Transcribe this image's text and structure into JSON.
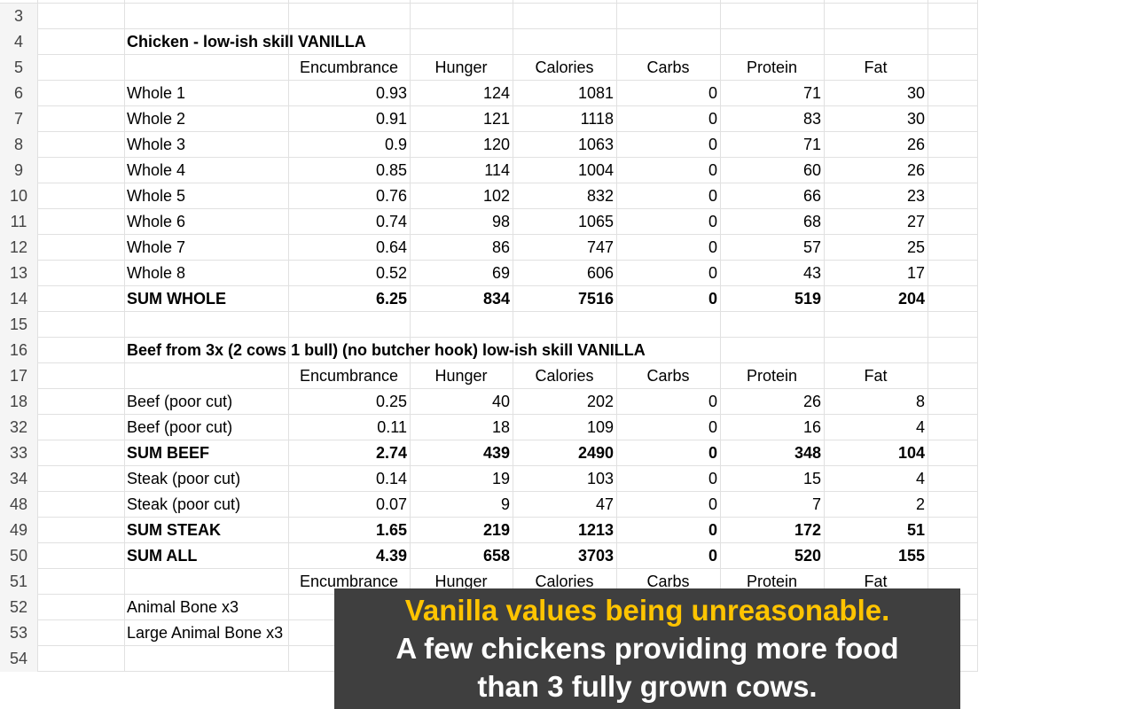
{
  "sheet": {
    "rows": [
      {
        "number": 3,
        "cells": [
          null,
          null,
          null,
          null,
          null,
          null,
          null
        ]
      },
      {
        "number": 4,
        "bold": true,
        "cells": [
          "Chicken - low-ish skill VANILLA",
          null,
          null,
          null,
          null,
          null,
          null
        ]
      },
      {
        "number": 5,
        "cells": [
          null,
          "Encumbrance",
          "Hunger",
          "Calories",
          "Carbs",
          "Protein",
          "Fat"
        ]
      },
      {
        "number": 6,
        "cells": [
          "Whole 1",
          0.93,
          124,
          1081,
          0,
          71,
          30
        ]
      },
      {
        "number": 7,
        "cells": [
          "Whole 2",
          0.91,
          121,
          1118,
          0,
          83,
          30
        ]
      },
      {
        "number": 8,
        "cells": [
          "Whole 3",
          0.9,
          120,
          1063,
          0,
          71,
          26
        ]
      },
      {
        "number": 9,
        "cells": [
          "Whole 4",
          0.85,
          114,
          1004,
          0,
          60,
          26
        ]
      },
      {
        "number": 10,
        "cells": [
          "Whole 5",
          0.76,
          102,
          832,
          0,
          66,
          23
        ]
      },
      {
        "number": 11,
        "cells": [
          "Whole 6",
          0.74,
          98,
          1065,
          0,
          68,
          27
        ]
      },
      {
        "number": 12,
        "cells": [
          "Whole 7",
          0.64,
          86,
          747,
          0,
          57,
          25
        ]
      },
      {
        "number": 13,
        "cells": [
          "Whole 8",
          0.52,
          69,
          606,
          0,
          43,
          17
        ]
      },
      {
        "number": 14,
        "bold": true,
        "cells": [
          "SUM WHOLE",
          6.25,
          834,
          7516,
          0,
          519,
          204
        ]
      },
      {
        "number": 15,
        "cells": [
          null,
          null,
          null,
          null,
          null,
          null,
          null
        ]
      },
      {
        "number": 16,
        "bold": true,
        "cells": [
          "Beef from 3x (2 cows 1 bull) (no butcher hook) low-ish skill VANILLA",
          null,
          null,
          null,
          null,
          null,
          null
        ]
      },
      {
        "number": 17,
        "cells": [
          null,
          "Encumbrance",
          "Hunger",
          "Calories",
          "Carbs",
          "Protein",
          "Fat"
        ]
      },
      {
        "number": 18,
        "cells": [
          "Beef (poor cut)",
          0.25,
          40,
          202,
          0,
          26,
          8
        ]
      },
      {
        "number": 32,
        "cells": [
          "Beef (poor cut)",
          0.11,
          18,
          109,
          0,
          16,
          4
        ]
      },
      {
        "number": 33,
        "bold": true,
        "cells": [
          "SUM BEEF",
          2.74,
          439,
          2490,
          0,
          348,
          104
        ]
      },
      {
        "number": 34,
        "cells": [
          "Steak (poor cut)",
          0.14,
          19,
          103,
          0,
          15,
          4
        ]
      },
      {
        "number": 48,
        "cells": [
          "Steak (poor cut)",
          0.07,
          9,
          47,
          0,
          7,
          2
        ]
      },
      {
        "number": 49,
        "bold": true,
        "cells": [
          "SUM STEAK",
          1.65,
          219,
          1213,
          0,
          172,
          51
        ]
      },
      {
        "number": 50,
        "bold": true,
        "cells": [
          "SUM ALL",
          4.39,
          658,
          3703,
          0,
          520,
          155
        ]
      },
      {
        "number": 51,
        "cells": [
          null,
          "Encumbrance",
          "Hunger",
          "Calories",
          "Carbs",
          "Protein",
          "Fat"
        ]
      },
      {
        "number": 52,
        "cells": [
          "Animal Bone x3",
          null,
          null,
          null,
          null,
          null,
          null
        ]
      },
      {
        "number": 53,
        "cells": [
          "Large Animal Bone x3",
          null,
          null,
          null,
          null,
          null,
          null
        ]
      },
      {
        "number": 54,
        "cells": [
          null,
          null,
          null,
          null,
          null,
          null,
          null
        ]
      }
    ]
  },
  "caption": {
    "highlight": "Vanilla values being unreasonable.",
    "lines": [
      "A few chickens providing more food",
      "than 3 fully grown cows."
    ]
  }
}
